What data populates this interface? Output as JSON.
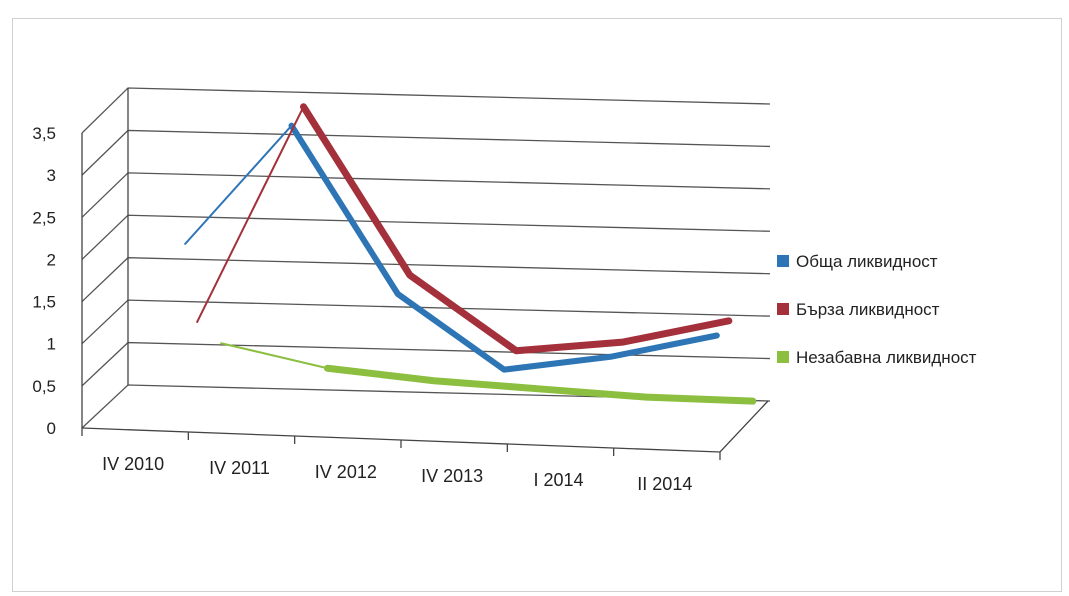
{
  "chart_data": {
    "type": "line",
    "title": "",
    "xlabel": "",
    "ylabel": "",
    "categories": [
      "IV 2010",
      "IV 2011",
      "IV 2012",
      "IV 2013",
      "I 2014",
      "II 2014"
    ],
    "ylim": [
      0,
      3.5
    ],
    "yticks": [
      "0",
      "0,5",
      "1",
      "1,5",
      "2",
      "2,5",
      "3",
      "3,5"
    ],
    "grid": true,
    "legend_position": "right",
    "series": [
      {
        "name": "Обща ликвидност",
        "color": "#2e75b6",
        "values": [
          1.9,
          3.35,
          1.4,
          0.55,
          0.75,
          1.05
        ]
      },
      {
        "name": "Бърза ликвидност",
        "color": "#a3303a",
        "values": [
          0.95,
          3.55,
          1.6,
          0.75,
          0.9,
          1.2
        ]
      },
      {
        "name": "Незабавна ликвидност",
        "color": "#8cbf3f",
        "values": [
          0.65,
          0.4,
          0.3,
          0.25,
          0.2,
          0.2
        ]
      }
    ]
  }
}
